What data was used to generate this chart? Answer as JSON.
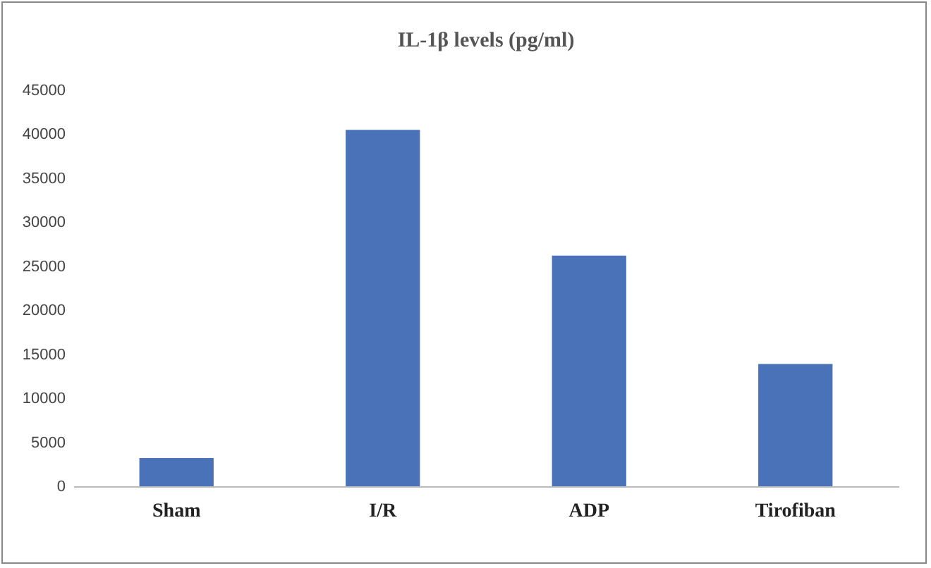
{
  "chart_data": {
    "type": "bar",
    "title": "IL-1β levels (pg/ml)",
    "categories": [
      "Sham",
      "I/R",
      "ADP",
      "Tirofiban"
    ],
    "values": [
      3200,
      40500,
      26200,
      13900
    ],
    "color": "#4a72b8",
    "ylim": [
      0,
      45000
    ],
    "yticks": [
      0,
      5000,
      10000,
      15000,
      20000,
      25000,
      30000,
      35000,
      40000,
      45000
    ],
    "grid": false
  }
}
